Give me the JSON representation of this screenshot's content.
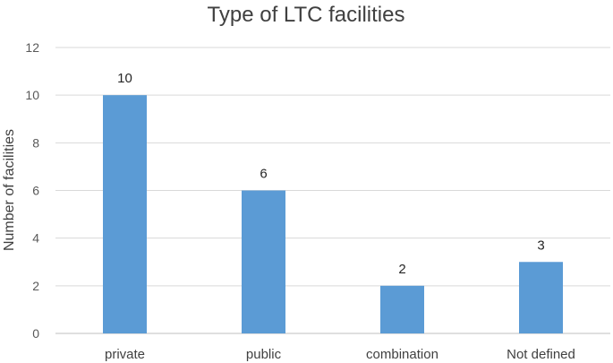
{
  "chart_data": {
    "type": "bar",
    "title": "Type of LTC facilities",
    "xlabel": "",
    "ylabel": "Number of facilities",
    "categories": [
      "private",
      "public",
      "combination",
      "Not defined"
    ],
    "values": [
      10,
      6,
      2,
      3
    ],
    "data_labels": [
      "10",
      "6",
      "2",
      "3"
    ],
    "ylim": [
      0,
      12
    ],
    "yticks": [
      0,
      2,
      4,
      6,
      8,
      10,
      12
    ],
    "grid": true,
    "legend": "none",
    "bar_color": "#5b9bd5"
  }
}
